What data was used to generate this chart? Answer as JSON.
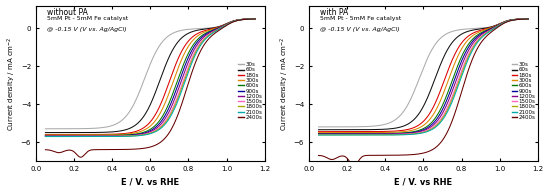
{
  "panel_left": {
    "title_line1": "without PA",
    "title_line2": "5mM Pt - 5mM Fe catalyst",
    "annotation": "@ -0.15 V (V vs. Ag/AgCl)",
    "xlabel": "E / V. vs RHE",
    "ylabel": "Current density / mA cm$^{-2}$"
  },
  "panel_right": {
    "title_line1": "with PA",
    "title_line2": "5mM Pt - 5mM Fe catalyst",
    "annotation": "@ -0.15 V (V vs. Ag/AgCl)",
    "xlabel": "E / V. vs RHE",
    "ylabel": "Current density / mA cm$^{-2}$"
  },
  "legend_labels": [
    "30s",
    "60s",
    "180s",
    "300s",
    "600s",
    "900s",
    "1200s",
    "1500s",
    "1800s",
    "2100s",
    "2400s"
  ],
  "colors": [
    "#aaaaaa",
    "#111111",
    "#dd0000",
    "#dd8800",
    "#007700",
    "#000099",
    "#880088",
    "#ff66bb",
    "#aaaa00",
    "#00aaaa",
    "#660000"
  ],
  "xlim": [
    0.0,
    1.2
  ],
  "ylim": [
    -7.0,
    1.2
  ],
  "xticks": [
    0.0,
    0.2,
    0.4,
    0.6,
    0.8,
    1.0,
    1.2
  ],
  "yticks": [
    -6,
    -4,
    -2,
    0
  ],
  "left_params": [
    [
      0.57,
      -5.3,
      false,
      0.0
    ],
    [
      0.65,
      -5.5,
      false,
      0.0
    ],
    [
      0.7,
      -5.6,
      false,
      0.0
    ],
    [
      0.72,
      -5.62,
      false,
      0.0
    ],
    [
      0.74,
      -5.65,
      false,
      0.0
    ],
    [
      0.75,
      -5.67,
      false,
      0.0
    ],
    [
      0.76,
      -5.68,
      false,
      0.0
    ],
    [
      0.77,
      -5.69,
      false,
      0.0
    ],
    [
      0.775,
      -5.7,
      false,
      0.0
    ],
    [
      0.78,
      -5.71,
      false,
      0.0
    ],
    [
      0.79,
      -6.4,
      true,
      -0.4
    ]
  ],
  "right_params": [
    [
      0.58,
      -5.2,
      false,
      0.0
    ],
    [
      0.66,
      -5.35,
      false,
      0.0
    ],
    [
      0.71,
      -5.45,
      false,
      0.0
    ],
    [
      0.73,
      -5.5,
      false,
      0.0
    ],
    [
      0.75,
      -5.55,
      false,
      0.0
    ],
    [
      0.76,
      -5.57,
      false,
      0.0
    ],
    [
      0.77,
      -5.58,
      false,
      0.0
    ],
    [
      0.78,
      -5.6,
      false,
      0.0
    ],
    [
      0.785,
      -5.62,
      false,
      0.0
    ],
    [
      0.79,
      -5.63,
      false,
      0.0
    ],
    [
      0.8,
      -6.7,
      true,
      -0.55
    ]
  ]
}
